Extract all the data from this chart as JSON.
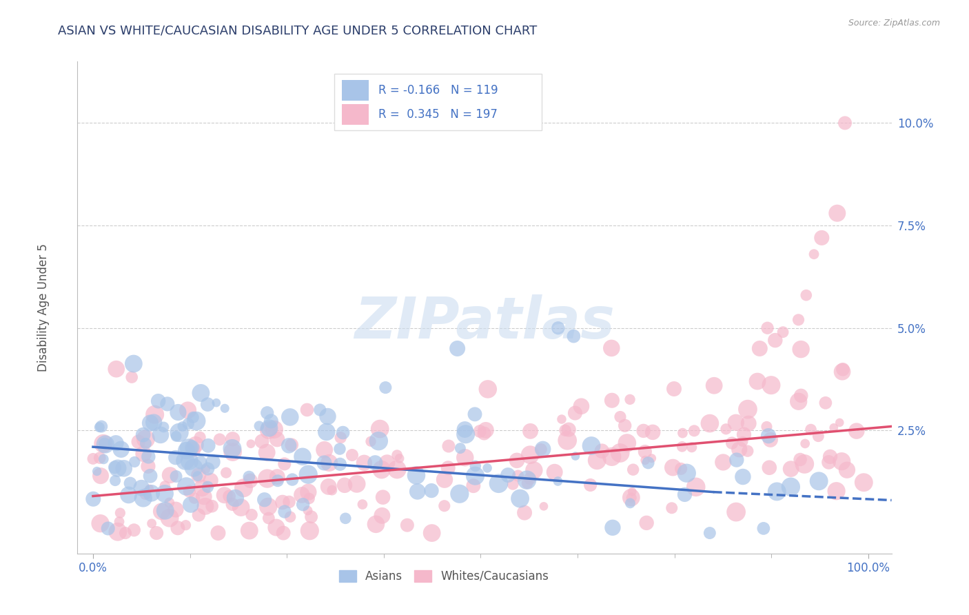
{
  "title": "ASIAN VS WHITE/CAUCASIAN DISABILITY AGE UNDER 5 CORRELATION CHART",
  "source": "Source: ZipAtlas.com",
  "ylabel": "Disability Age Under 5",
  "asian_color": "#a8c4e8",
  "white_color": "#f5b8cb",
  "asian_line_color": "#4472c4",
  "white_line_color": "#e05070",
  "legend_label_asian": "Asians",
  "legend_label_white": "Whites/Caucasians",
  "R_asian": -0.166,
  "N_asian": 119,
  "R_white": 0.345,
  "N_white": 197,
  "watermark": "ZIPatlas",
  "background_color": "#ffffff",
  "grid_color": "#cccccc",
  "title_color": "#2c3e6b",
  "axis_color": "#4472c4",
  "tick_color": "#4472c4"
}
